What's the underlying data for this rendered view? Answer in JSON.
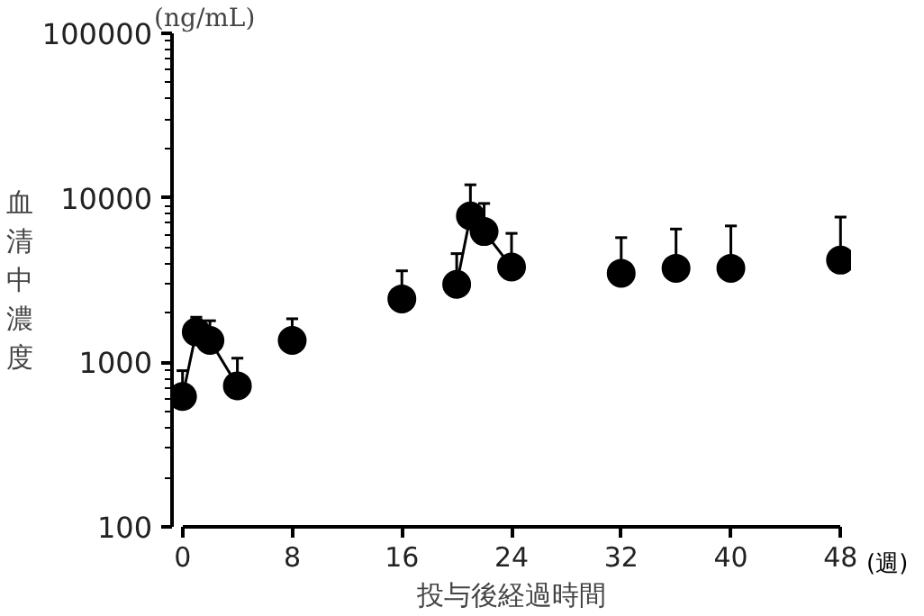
{
  "chart_data": {
    "type": "scatter",
    "xlabel": "投与後経過時間",
    "ylabel": "血清中濃度",
    "log": "y",
    "grid": false,
    "marker": "circle",
    "xlim": [
      0,
      48
    ],
    "xticks": [
      0,
      8,
      16,
      24,
      32,
      40,
      48
    ],
    "ylim": [
      100,
      100000
    ],
    "yticks": [
      100,
      1000,
      10000,
      100000
    ],
    "annotations": [
      "(ng/mL)",
      "(週)"
    ],
    "series": [
      {
        "color": "#000000",
        "x": [
          0,
          1,
          2,
          4,
          8,
          16,
          20,
          21,
          22,
          24,
          32,
          36,
          40,
          48
        ],
        "values": [
          620,
          1530,
          1360,
          720,
          1360,
          2430,
          2980,
          7760,
          6240,
          3800,
          3480,
          3730,
          3730,
          4180
        ],
        "errors": [
          [
            620,
            890
          ],
          [
            1530,
            1880
          ],
          [
            1360,
            1790
          ],
          [
            720,
            1060
          ],
          [
            1360,
            1840
          ],
          [
            2430,
            3600
          ],
          [
            2980,
            4580
          ],
          [
            7760,
            12000
          ],
          [
            6240,
            9240
          ],
          [
            3800,
            6080
          ],
          [
            3480,
            5730
          ],
          [
            3730,
            6460
          ],
          [
            3730,
            6750
          ],
          [
            4180,
            7640
          ]
        ]
      },
      {
        "type": "line",
        "color": "#000000",
        "marker": "none",
        "x": [
          0,
          1,
          2,
          4
        ],
        "values": [
          620,
          1530,
          1360,
          720
        ]
      },
      {
        "type": "line",
        "color": "#000000",
        "marker": "none",
        "x": [
          20,
          21,
          22,
          24
        ],
        "values": [
          2980,
          7760,
          6240,
          3800
        ]
      }
    ]
  }
}
